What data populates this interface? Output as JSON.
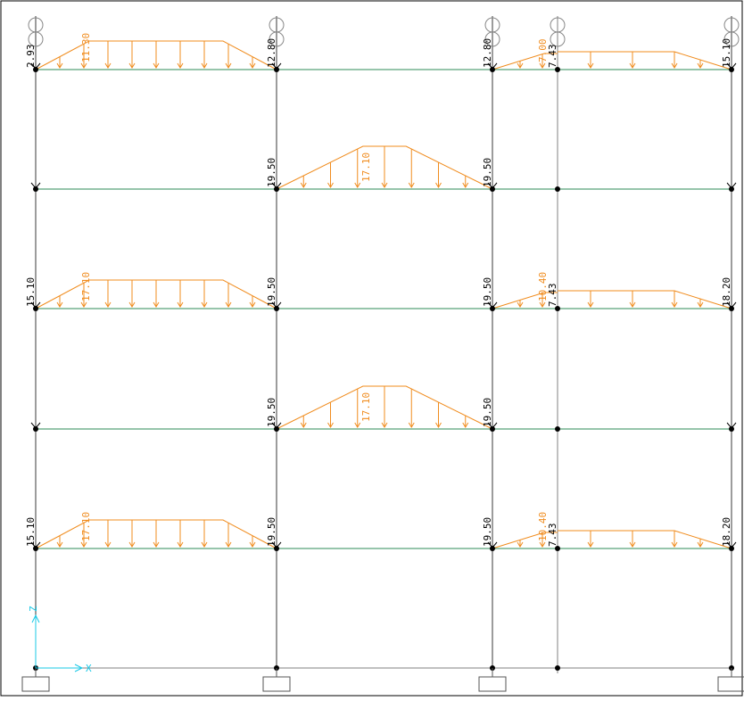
{
  "colors": {
    "frame_line": "#3a3a3a",
    "beam": "#2e8b57",
    "load": "#f08c1e",
    "node": "#000000",
    "axis": "#19c8e6",
    "reaction": "#000000",
    "background": "#ffffff"
  },
  "axes_triad": {
    "x_label": "X",
    "z_label": "Z"
  },
  "levels": [
    {
      "label_left": "2.93",
      "mid_label": "11.30",
      "label_right": "12.80"
    },
    {
      "label_left": "19.50",
      "mid_label": "17.10",
      "label_right": "19.50"
    },
    {
      "label_left": "15.10",
      "mid_label": "17.10",
      "label_right": "19.50"
    },
    {
      "label_left": "19.50",
      "mid_label": "17.10",
      "label_right": "19.50"
    },
    {
      "label_left": "15.10",
      "mid_label": "17.10",
      "label_right": "19.50"
    }
  ],
  "right_bay": [
    {
      "left": "12.80",
      "mid": "7.00",
      "node": "7.43",
      "right": "15.10"
    },
    {
      "left": "19.50",
      "mid": "10.40",
      "node": "7.43",
      "right": "18.20"
    },
    {
      "left": "19.50",
      "mid": "10.40",
      "node": "7.43",
      "right": "18.20"
    }
  ],
  "node_icon": "circle-node-icon"
}
